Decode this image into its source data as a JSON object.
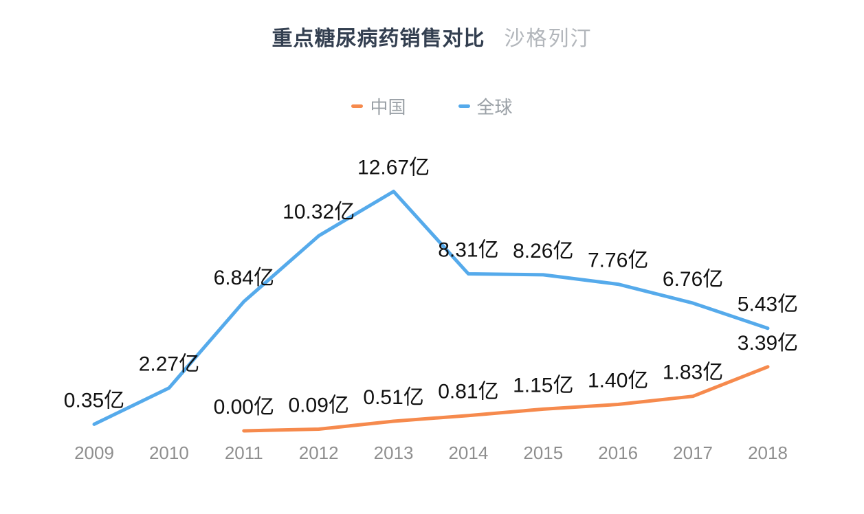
{
  "title": {
    "main": "重点糖尿病药销售对比",
    "sub": "沙格列汀"
  },
  "legend": {
    "items": [
      {
        "key": "china",
        "label": "中国",
        "color": "#f68a4d"
      },
      {
        "key": "global",
        "label": "全球",
        "color": "#55aaeb"
      }
    ]
  },
  "chart_data": {
    "type": "line",
    "title": "重点糖尿病药销售对比 沙格列汀",
    "unit": "亿",
    "categories": [
      "2009",
      "2010",
      "2011",
      "2012",
      "2013",
      "2014",
      "2015",
      "2016",
      "2017",
      "2018"
    ],
    "series": [
      {
        "key": "china",
        "name": "中国",
        "color": "#f68a4d",
        "values": [
          null,
          null,
          0.0,
          0.09,
          0.51,
          0.81,
          1.15,
          1.4,
          1.83,
          3.39
        ],
        "labels": [
          "",
          "",
          "0.00亿",
          "0.09亿",
          "0.51亿",
          "0.81亿",
          "1.15亿",
          "1.40亿",
          "1.83亿",
          "3.39亿"
        ]
      },
      {
        "key": "global",
        "name": "全球",
        "color": "#55aaeb",
        "values": [
          0.35,
          2.27,
          6.84,
          10.32,
          12.67,
          8.31,
          8.26,
          7.76,
          6.76,
          5.43
        ],
        "labels": [
          "0.35亿",
          "2.27亿",
          "6.84亿",
          "10.32亿",
          "12.67亿",
          "8.31亿",
          "8.26亿",
          "7.76亿",
          "6.76亿",
          "5.43亿"
        ]
      }
    ],
    "xlabel": "",
    "ylabel": "",
    "ylim": [
      0,
      14
    ],
    "grid": false,
    "y_axis_visible": false,
    "legend_position": "top-center",
    "data_label_color": "#111111",
    "axis_label_color": "#8e8e8e",
    "background_color": "#ffffff"
  }
}
